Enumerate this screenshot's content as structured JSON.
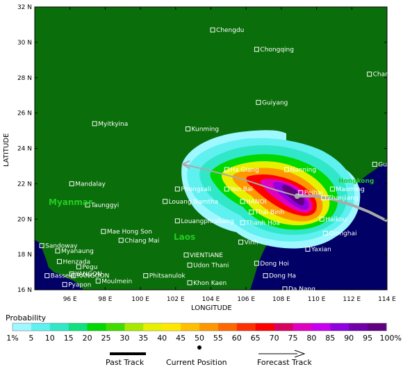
{
  "axes": {
    "xlabel": "LONGITUDE",
    "ylabel": "LATITUDE",
    "x_ticks": [
      "96 E",
      "98 E",
      "100 E",
      "102 E",
      "104 E",
      "106 E",
      "108 E",
      "110 E",
      "112 E",
      "114 E"
    ],
    "y_ticks": [
      "16 N",
      "18 N",
      "20 N",
      "22 N",
      "24 N",
      "26 N",
      "28 N",
      "30 N",
      "32 N"
    ],
    "xlim": [
      94,
      114
    ],
    "ylim": [
      16,
      32
    ]
  },
  "countries": [
    "Myanmar",
    "Laos",
    "Hongkong"
  ],
  "cities": [
    {
      "name": "Chengdu",
      "lon": 104.1,
      "lat": 30.7
    },
    {
      "name": "Chongqing",
      "lon": 106.6,
      "lat": 29.6
    },
    {
      "name": "Changsha",
      "lon": 113.0,
      "lat": 28.2
    },
    {
      "name": "Guiyang",
      "lon": 106.7,
      "lat": 26.6
    },
    {
      "name": "Myitkyina",
      "lon": 97.4,
      "lat": 25.4
    },
    {
      "name": "Kunming",
      "lon": 102.7,
      "lat": 25.1
    },
    {
      "name": "Guangzhou",
      "lon": 113.3,
      "lat": 23.1
    },
    {
      "name": "Ha Giang",
      "lon": 104.9,
      "lat": 22.8
    },
    {
      "name": "Nanning",
      "lon": 108.3,
      "lat": 22.8
    },
    {
      "name": "Mandalay",
      "lon": 96.1,
      "lat": 22.0
    },
    {
      "name": "Phongsali",
      "lon": 102.1,
      "lat": 21.7
    },
    {
      "name": "Yen Bai",
      "lon": 104.9,
      "lat": 21.7
    },
    {
      "name": "Peihai",
      "lon": 109.1,
      "lat": 21.5
    },
    {
      "name": "Maoming",
      "lon": 110.9,
      "lat": 21.7
    },
    {
      "name": "HANOI",
      "lon": 105.8,
      "lat": 21.0
    },
    {
      "name": "Zhanjiang",
      "lon": 110.4,
      "lat": 21.2
    },
    {
      "name": "Louang Namtha",
      "lon": 101.4,
      "lat": 21.0
    },
    {
      "name": "Taunggyi",
      "lon": 97.0,
      "lat": 20.8
    },
    {
      "name": "Thai Binh",
      "lon": 106.3,
      "lat": 20.4
    },
    {
      "name": "Louangphrabang",
      "lon": 102.1,
      "lat": 19.9
    },
    {
      "name": "Haikou",
      "lon": 110.3,
      "lat": 20.0
    },
    {
      "name": "Thanh Hoa",
      "lon": 105.8,
      "lat": 19.8
    },
    {
      "name": "Mae Hong Son",
      "lon": 97.9,
      "lat": 19.3
    },
    {
      "name": "Qionghai",
      "lon": 110.5,
      "lat": 19.2
    },
    {
      "name": "Chiang Mai",
      "lon": 98.9,
      "lat": 18.8
    },
    {
      "name": "Vinh",
      "lon": 105.7,
      "lat": 18.7
    },
    {
      "name": "Sandoway",
      "lon": 94.4,
      "lat": 18.5
    },
    {
      "name": "Yaxian",
      "lon": 109.5,
      "lat": 18.3
    },
    {
      "name": "Myanaung",
      "lon": 95.3,
      "lat": 18.2
    },
    {
      "name": "VIENTIANE",
      "lon": 102.6,
      "lat": 17.97
    },
    {
      "name": "Henzada",
      "lon": 95.4,
      "lat": 17.6
    },
    {
      "name": "Dong Hoi",
      "lon": 106.6,
      "lat": 17.5
    },
    {
      "name": "Udon Thani",
      "lon": 102.8,
      "lat": 17.4
    },
    {
      "name": "Pegu",
      "lon": 96.5,
      "lat": 17.3
    },
    {
      "name": "YANGON",
      "lon": 96.1,
      "lat": 16.9
    },
    {
      "name": "RANGOON",
      "lon": 96.2,
      "lat": 16.8
    },
    {
      "name": "Dong Ha",
      "lon": 107.1,
      "lat": 16.8
    },
    {
      "name": "Phitsanulok",
      "lon": 100.3,
      "lat": 16.8
    },
    {
      "name": "Bassein",
      "lon": 94.7,
      "lat": 16.8
    },
    {
      "name": "Moulmein",
      "lon": 97.6,
      "lat": 16.5
    },
    {
      "name": "Khon Kaen",
      "lon": 102.8,
      "lat": 16.4
    },
    {
      "name": "Pyapon",
      "lon": 95.7,
      "lat": 16.3
    },
    {
      "name": "Da Nang",
      "lon": 108.2,
      "lat": 16.05
    }
  ],
  "storm": {
    "current_position": {
      "lon": 108.9,
      "lat": 21.3
    },
    "past_track": [
      [
        114.0,
        19.9
      ],
      [
        113.0,
        20.4
      ],
      [
        112.0,
        20.8
      ],
      [
        111.0,
        21.1
      ],
      [
        110.0,
        21.3
      ],
      [
        108.9,
        21.3
      ]
    ],
    "forecast_track": [
      [
        108.9,
        21.3
      ],
      [
        107.5,
        21.7
      ],
      [
        106.0,
        22.2
      ],
      [
        104.5,
        22.6
      ],
      [
        103.3,
        22.9
      ],
      [
        102.4,
        23.1
      ]
    ]
  },
  "legend": {
    "title": "Probability",
    "tick_labels": [
      "1%",
      "5",
      "10",
      "15",
      "20",
      "25",
      "30",
      "35",
      "40",
      "45",
      "50",
      "55",
      "60",
      "65",
      "70",
      "75",
      "80",
      "85",
      "90",
      "95",
      "100%"
    ],
    "colors": [
      "#9ff7ff",
      "#5ff0f0",
      "#30e8c8",
      "#10e080",
      "#00d800",
      "#40dc00",
      "#a8e800",
      "#e8f000",
      "#ffe800",
      "#ffc000",
      "#ff9800",
      "#ff6800",
      "#ff3000",
      "#ff0000",
      "#d80060",
      "#e000c0",
      "#c800f0",
      "#9000e0",
      "#7000a8",
      "#600080"
    ],
    "key": {
      "past_label": "Past Track",
      "current_label": "Current Position",
      "forecast_label": "Forecast Track"
    }
  },
  "colors": {
    "land": "#0a6e0a",
    "ocean": "#000066",
    "city_marker": "#ffffff",
    "track": "#aaaaaa",
    "country_label": "#22cc22"
  }
}
